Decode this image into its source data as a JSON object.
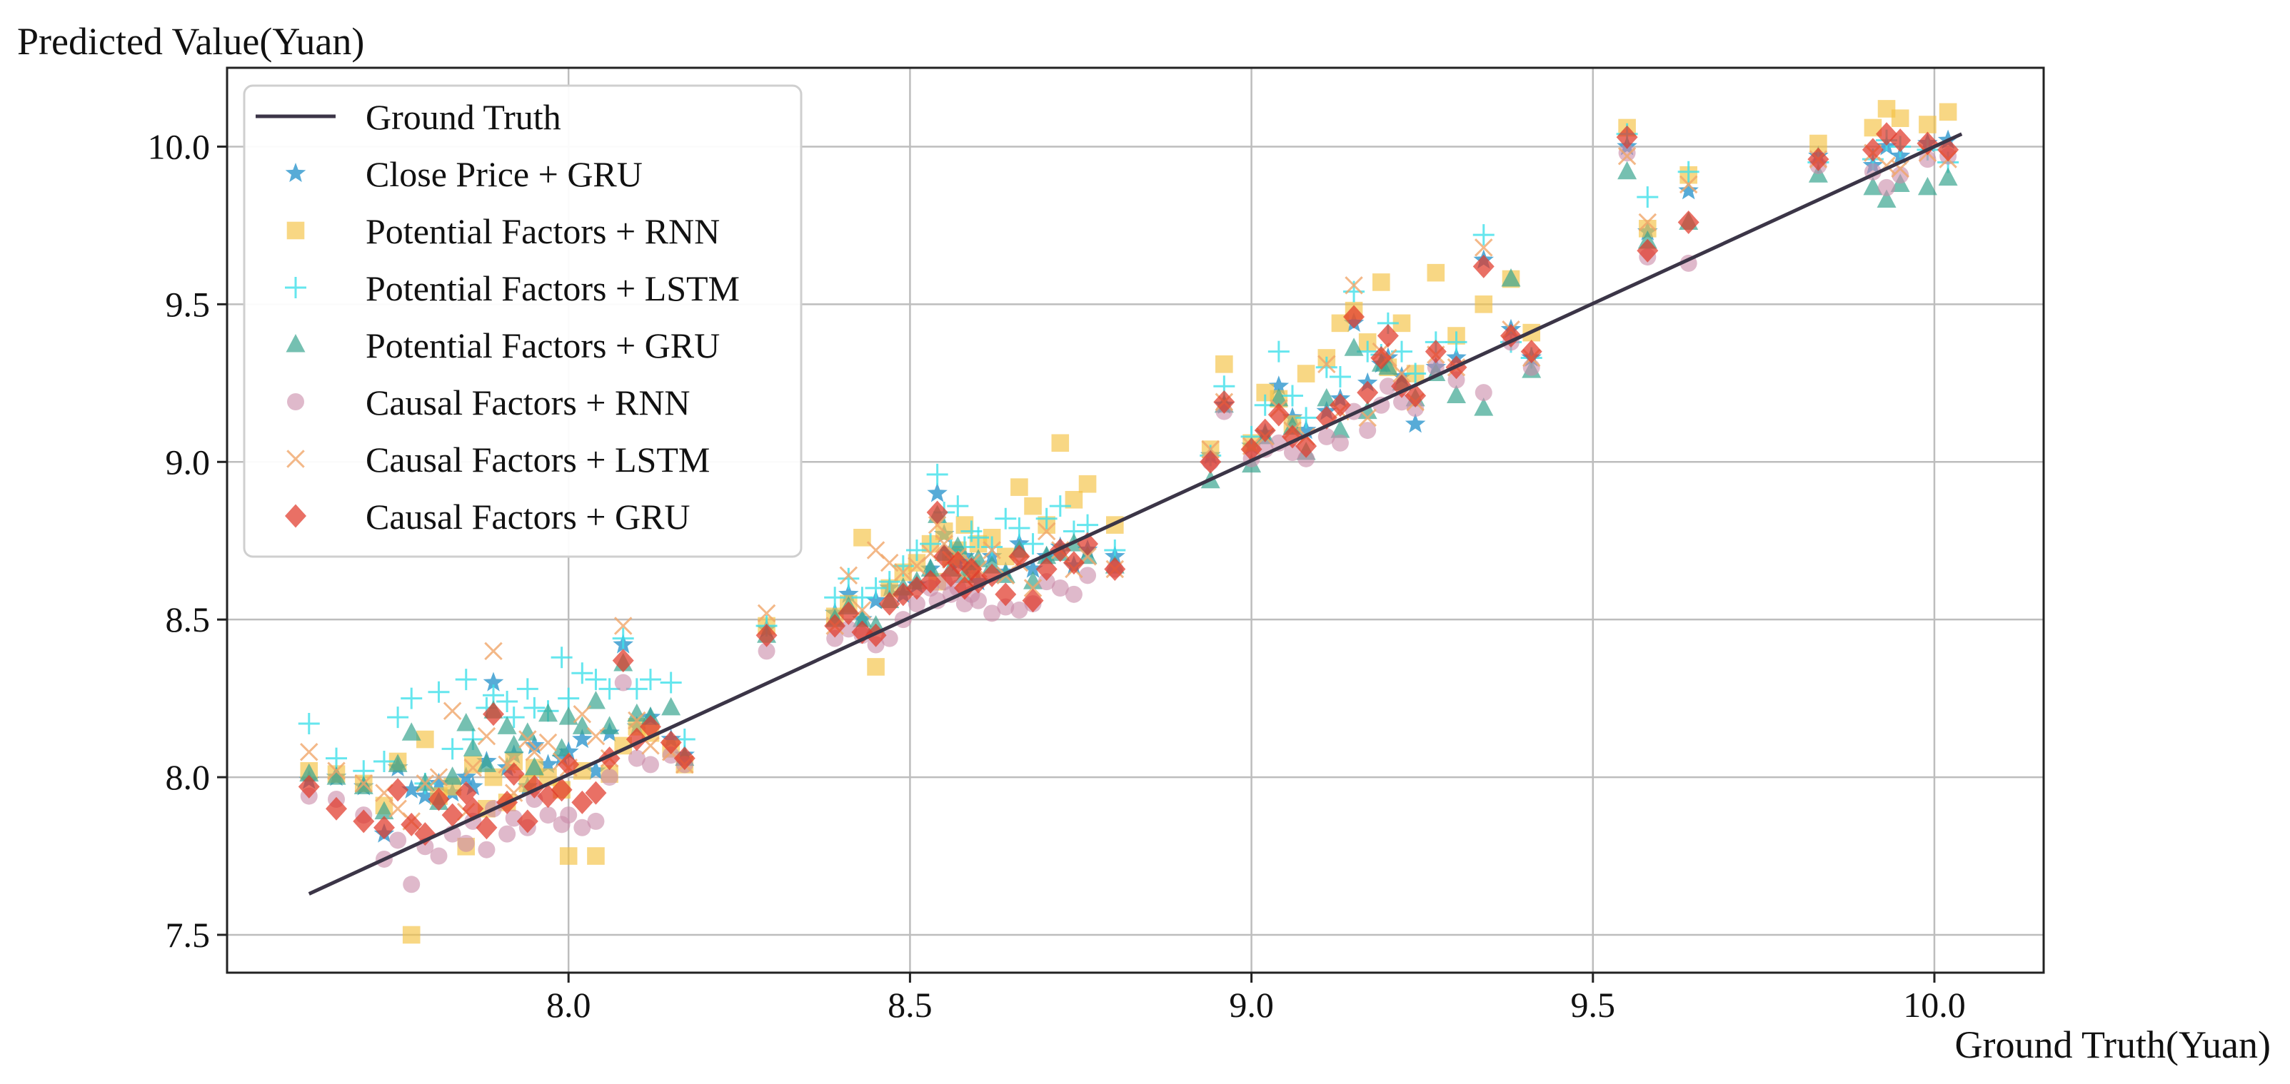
{
  "chart_data": {
    "type": "scatter",
    "title": "",
    "xlabel": "Ground Truth(Yuan)",
    "ylabel": "Predicted Value(Yuan)",
    "xlim": [
      7.5,
      10.16
    ],
    "ylim": [
      7.38,
      10.25
    ],
    "xticks": [
      "8.0",
      "8.5",
      "9.0",
      "9.5",
      "10.0"
    ],
    "yticks": [
      "7.5",
      "8.0",
      "8.5",
      "9.0",
      "9.5",
      "10.0"
    ],
    "grid": true,
    "legend_position": "upper-left",
    "reference_line": {
      "name": "Ground Truth",
      "color": "#3b3547",
      "x": [
        7.62,
        10.04
      ],
      "y": [
        7.63,
        10.04
      ]
    },
    "ground_truth_x": [
      7.62,
      7.66,
      7.7,
      7.73,
      7.75,
      7.77,
      7.79,
      7.81,
      7.83,
      7.85,
      7.86,
      7.88,
      7.89,
      7.91,
      7.92,
      7.94,
      7.95,
      7.97,
      7.99,
      8.0,
      8.02,
      8.04,
      8.06,
      8.08,
      8.1,
      8.12,
      8.15,
      8.17,
      8.29,
      8.39,
      8.41,
      8.43,
      8.45,
      8.47,
      8.49,
      8.51,
      8.53,
      8.54,
      8.55,
      8.56,
      8.57,
      8.58,
      8.59,
      8.6,
      8.62,
      8.64,
      8.66,
      8.68,
      8.7,
      8.72,
      8.74,
      8.76,
      8.8,
      8.94,
      8.96,
      9.0,
      9.02,
      9.04,
      9.06,
      9.08,
      9.11,
      9.13,
      9.15,
      9.17,
      9.19,
      9.2,
      9.22,
      9.24,
      9.27,
      9.3,
      9.34,
      9.38,
      9.41,
      9.55,
      9.58,
      9.64,
      9.83,
      9.91,
      9.93,
      9.95,
      9.99,
      10.02
    ],
    "series": [
      {
        "name": "Close Price + GRU",
        "marker": "star",
        "color": "#3a9cd0",
        "y": [
          7.99,
          8.0,
          7.97,
          7.82,
          8.03,
          7.96,
          7.94,
          7.98,
          7.95,
          8.0,
          7.97,
          8.05,
          8.3,
          8.03,
          8.07,
          7.97,
          8.1,
          8.04,
          8.06,
          8.08,
          8.12,
          8.02,
          8.14,
          8.42,
          8.16,
          8.19,
          8.12,
          8.07,
          8.47,
          8.52,
          8.58,
          8.5,
          8.56,
          8.6,
          8.58,
          8.61,
          8.66,
          8.9,
          8.77,
          8.72,
          8.68,
          8.7,
          8.66,
          8.62,
          8.7,
          8.65,
          8.74,
          8.66,
          8.7,
          8.73,
          8.67,
          8.72,
          8.7,
          9.02,
          9.18,
          9.05,
          9.09,
          9.24,
          9.14,
          9.1,
          9.16,
          9.2,
          9.44,
          9.25,
          9.31,
          9.33,
          9.27,
          9.12,
          9.3,
          9.33,
          9.64,
          9.42,
          9.33,
          10.0,
          9.73,
          9.86,
          9.97,
          9.94,
          10.0,
          9.97,
          10.01,
          10.02
        ]
      },
      {
        "name": "Potential Factors + RNN",
        "marker": "square",
        "color": "#f5c242",
        "y": [
          8.02,
          8.01,
          7.98,
          7.91,
          8.05,
          7.5,
          8.12,
          7.94,
          7.97,
          7.78,
          8.04,
          7.9,
          8.0,
          7.92,
          8.05,
          7.98,
          8.03,
          8.0,
          7.96,
          7.75,
          8.02,
          7.75,
          8.01,
          8.1,
          8.16,
          8.14,
          8.09,
          8.04,
          8.48,
          8.51,
          8.55,
          8.76,
          8.35,
          8.6,
          8.65,
          8.68,
          8.74,
          8.62,
          8.78,
          8.7,
          8.72,
          8.8,
          8.66,
          8.74,
          8.76,
          8.7,
          8.92,
          8.86,
          8.8,
          9.06,
          8.88,
          8.93,
          8.8,
          9.04,
          9.31,
          9.06,
          9.22,
          9.2,
          9.12,
          9.28,
          9.33,
          9.44,
          9.48,
          9.38,
          9.57,
          9.3,
          9.44,
          9.28,
          9.6,
          9.4,
          9.5,
          9.58,
          9.41,
          10.06,
          9.74,
          9.91,
          10.01,
          10.06,
          10.12,
          10.09,
          10.07,
          10.11
        ]
      },
      {
        "name": "Potential Factors + LSTM",
        "marker": "plus",
        "color": "#3fe0ea",
        "y": [
          8.17,
          8.06,
          8.02,
          8.05,
          8.19,
          8.25,
          7.98,
          8.27,
          8.09,
          8.31,
          8.12,
          8.22,
          8.26,
          8.24,
          8.19,
          8.28,
          8.22,
          8.21,
          8.38,
          8.25,
          8.33,
          8.31,
          8.28,
          8.44,
          8.28,
          8.31,
          8.3,
          8.12,
          8.48,
          8.57,
          8.63,
          8.57,
          8.6,
          8.62,
          8.67,
          8.72,
          8.74,
          8.96,
          8.84,
          8.72,
          8.86,
          8.73,
          8.78,
          8.76,
          8.73,
          8.82,
          8.79,
          8.74,
          8.82,
          8.86,
          8.78,
          8.8,
          8.72,
          9.02,
          9.24,
          9.08,
          9.18,
          9.35,
          9.21,
          9.14,
          9.3,
          9.27,
          9.54,
          9.35,
          9.34,
          9.44,
          9.35,
          9.28,
          9.38,
          9.38,
          9.72,
          9.38,
          9.33,
          10.04,
          9.84,
          9.92,
          9.95,
          9.96,
          10.02,
          10.0,
          9.99,
          9.95
        ]
      },
      {
        "name": "Potential Factors + GRU",
        "marker": "triangle",
        "color": "#3aa590",
        "y": [
          8.01,
          8.0,
          7.97,
          7.89,
          8.04,
          8.14,
          7.98,
          7.92,
          8.0,
          8.17,
          8.09,
          8.04,
          8.21,
          8.16,
          8.1,
          8.14,
          8.03,
          8.2,
          8.09,
          8.19,
          8.16,
          8.24,
          8.16,
          8.36,
          8.2,
          8.19,
          8.22,
          8.06,
          8.45,
          8.5,
          8.54,
          8.5,
          8.48,
          8.56,
          8.6,
          8.62,
          8.66,
          8.83,
          8.71,
          8.66,
          8.73,
          8.64,
          8.68,
          8.69,
          8.67,
          8.64,
          8.72,
          8.62,
          8.7,
          8.71,
          8.74,
          8.7,
          8.67,
          8.94,
          9.18,
          8.99,
          9.08,
          9.2,
          9.11,
          9.03,
          9.2,
          9.1,
          9.36,
          9.16,
          9.31,
          9.3,
          9.25,
          9.2,
          9.28,
          9.21,
          9.17,
          9.58,
          9.29,
          9.92,
          9.7,
          9.76,
          9.91,
          9.87,
          9.83,
          9.88,
          9.87,
          9.9
        ]
      },
      {
        "name": "Causal Factors + RNN",
        "marker": "circle",
        "color": "#c98aa8",
        "y": [
          7.94,
          7.93,
          7.88,
          7.74,
          7.8,
          7.66,
          7.78,
          7.75,
          7.82,
          7.79,
          7.86,
          7.77,
          7.9,
          7.82,
          7.87,
          7.84,
          7.93,
          7.88,
          7.85,
          7.88,
          7.84,
          7.86,
          8.0,
          8.3,
          8.06,
          8.04,
          8.07,
          8.04,
          8.4,
          8.44,
          8.47,
          8.45,
          8.42,
          8.44,
          8.5,
          8.55,
          8.6,
          8.56,
          8.62,
          8.58,
          8.6,
          8.55,
          8.58,
          8.56,
          8.52,
          8.54,
          8.53,
          8.55,
          8.62,
          8.6,
          8.58,
          8.64,
          8.66,
          9.0,
          9.16,
          9.01,
          9.04,
          9.06,
          9.03,
          9.01,
          9.08,
          9.06,
          9.16,
          9.1,
          9.18,
          9.24,
          9.19,
          9.17,
          9.3,
          9.26,
          9.22,
          9.38,
          9.3,
          9.98,
          9.65,
          9.63,
          9.94,
          9.92,
          9.87,
          9.91,
          9.96,
          9.97
        ]
      },
      {
        "name": "Causal Factors + LSTM",
        "marker": "x",
        "color": "#f0a66a",
        "y": [
          8.08,
          8.02,
          7.98,
          7.95,
          7.9,
          7.86,
          7.98,
          8.0,
          8.21,
          7.89,
          8.03,
          8.13,
          8.4,
          8.04,
          7.95,
          8.12,
          8.08,
          8.11,
          8.05,
          8.03,
          8.2,
          8.13,
          8.06,
          8.48,
          8.18,
          8.1,
          8.08,
          8.04,
          8.52,
          8.48,
          8.64,
          8.53,
          8.72,
          8.68,
          8.65,
          8.67,
          8.71,
          8.8,
          8.74,
          8.69,
          8.7,
          8.63,
          8.68,
          8.66,
          8.72,
          8.64,
          8.68,
          8.6,
          8.78,
          8.72,
          8.66,
          8.7,
          8.66,
          9.04,
          9.19,
          9.05,
          9.08,
          9.17,
          9.1,
          9.08,
          9.31,
          9.16,
          9.56,
          9.14,
          9.35,
          9.33,
          9.28,
          9.19,
          9.34,
          9.3,
          9.68,
          9.42,
          9.33,
          9.97,
          9.76,
          9.88,
          9.96,
          9.98,
          9.94,
          9.93,
          9.98,
          9.96
        ]
      },
      {
        "name": "Causal Factors + GRU",
        "marker": "diamond",
        "color": "#e0392a",
        "y": [
          7.97,
          7.9,
          7.86,
          7.84,
          7.96,
          7.85,
          7.82,
          7.93,
          7.88,
          7.95,
          7.9,
          7.84,
          8.2,
          7.92,
          8.01,
          7.86,
          7.97,
          7.94,
          7.96,
          8.04,
          7.92,
          7.95,
          8.06,
          8.37,
          8.12,
          8.16,
          8.11,
          8.06,
          8.45,
          8.48,
          8.52,
          8.46,
          8.45,
          8.55,
          8.58,
          8.6,
          8.62,
          8.84,
          8.7,
          8.64,
          8.68,
          8.6,
          8.66,
          8.62,
          8.64,
          8.58,
          8.7,
          8.56,
          8.66,
          8.72,
          8.68,
          8.74,
          8.66,
          9.0,
          9.19,
          9.04,
          9.1,
          9.15,
          9.08,
          9.05,
          9.14,
          9.18,
          9.46,
          9.22,
          9.33,
          9.4,
          9.24,
          9.21,
          9.35,
          9.3,
          9.62,
          9.4,
          9.35,
          10.03,
          9.67,
          9.76,
          9.96,
          9.99,
          10.04,
          10.02,
          10.01,
          9.99
        ]
      }
    ]
  }
}
